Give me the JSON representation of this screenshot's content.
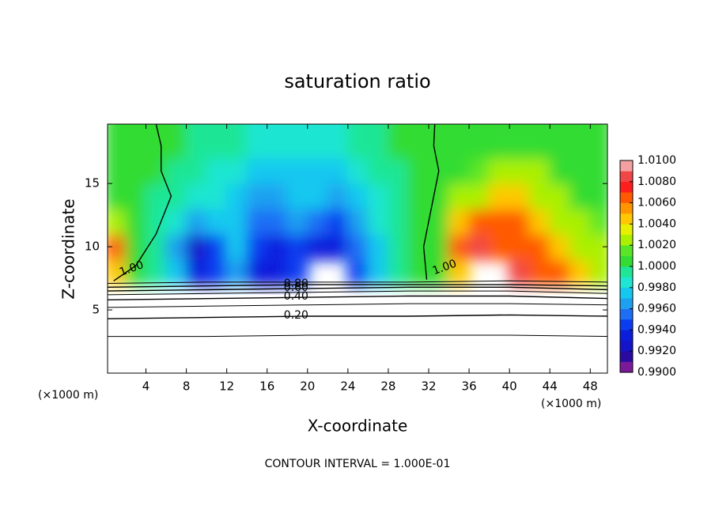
{
  "chart_data": {
    "type": "contour",
    "title": "saturation ratio",
    "xlabel": "X-coordinate",
    "ylabel": "Z-coordinate",
    "xunit": "(×1000 m)",
    "yunit": "(×1000 m)",
    "footer": "CONTOUR INTERVAL = 1.000E-01",
    "xlim": [
      0.2,
      49.7
    ],
    "ylim": [
      0,
      19.7
    ],
    "xticks": [
      4,
      8,
      12,
      16,
      20,
      24,
      28,
      32,
      36,
      40,
      44,
      48
    ],
    "yticks": [
      5,
      10,
      15
    ],
    "x": [
      1,
      3,
      5,
      7,
      9,
      11,
      13,
      15,
      17,
      19,
      21,
      23,
      25,
      27,
      29,
      31,
      33,
      35,
      37,
      39,
      41,
      43,
      45,
      47,
      49
    ],
    "z": [
      8,
      10,
      12,
      14,
      16,
      18
    ],
    "values": [
      [
        1.004,
        1.001,
        0.999,
        0.997,
        0.993,
        0.994,
        0.996,
        0.993,
        0.993,
        0.994,
        null,
        null,
        0.994,
        0.997,
        0.999,
        1.0,
        1.001,
        1.004,
        null,
        null,
        1.008,
        1.007,
        1.006,
        1.004,
        1.003
      ],
      [
        1.006,
        1.0005,
        0.999,
        0.996,
        0.992,
        0.994,
        0.997,
        0.994,
        0.993,
        0.994,
        0.993,
        0.993,
        0.995,
        0.997,
        0.999,
        1.0,
        1.001,
        1.006,
        1.008,
        1.007,
        1.007,
        1.006,
        1.005,
        1.003,
        1.002
      ],
      [
        1.002,
        1.001,
        0.999,
        0.998,
        0.996,
        0.997,
        0.997,
        0.995,
        0.995,
        0.996,
        0.995,
        0.994,
        0.996,
        0.998,
        0.999,
        1.0,
        1.0005,
        1.004,
        1.006,
        1.007,
        1.006,
        1.005,
        1.003,
        1.002,
        1.0015
      ],
      [
        1.001,
        1.0005,
        0.9995,
        0.999,
        0.998,
        0.998,
        0.997,
        0.996,
        0.996,
        0.997,
        0.997,
        0.996,
        0.997,
        0.998,
        0.9995,
        1.0,
        1.0005,
        1.002,
        1.003,
        1.004,
        1.004,
        1.003,
        1.002,
        1.001,
        1.001
      ],
      [
        1.001,
        1.0005,
        1.0,
        0.9995,
        0.999,
        0.998,
        0.998,
        0.997,
        0.997,
        0.997,
        0.997,
        0.997,
        0.998,
        0.999,
        0.9995,
        1.0,
        1.0005,
        1.001,
        1.0015,
        1.002,
        1.002,
        1.002,
        1.001,
        1.0008,
        1.0005
      ],
      [
        1.0005,
        1.0005,
        1.0,
        1.0,
        0.9995,
        0.999,
        0.999,
        0.998,
        0.998,
        0.998,
        0.998,
        0.998,
        0.999,
        0.9995,
        1.0,
        1.0003,
        1.0003,
        1.0005,
        1.0005,
        1.001,
        1.001,
        1.0008,
        1.0005,
        1.0003,
        1.0003
      ]
    ],
    "levels": [
      0.99,
      0.991,
      0.992,
      0.993,
      0.994,
      0.995,
      0.996,
      0.997,
      0.998,
      0.999,
      1.0,
      1.001,
      1.002,
      1.003,
      1.004,
      1.005,
      1.006,
      1.007,
      1.008,
      1.009,
      1.01
    ],
    "colors": [
      "#7a1a9a",
      "#2a0aa0",
      "#1414c8",
      "#0a1edc",
      "#0a3cf0",
      "#1e6ef5",
      "#1ea0f0",
      "#14c8f0",
      "#1ee6d2",
      "#1ee696",
      "#32dc32",
      "#5ae628",
      "#aaf000",
      "#e6f000",
      "#ffc800",
      "#ff9600",
      "#ff5a00",
      "#ff1e1e",
      "#f04646",
      "#f5a0a0"
    ],
    "colorbar_ticks": [
      {
        "value": 0.99,
        "label": "0.9900"
      },
      {
        "value": 0.992,
        "label": "0.9920"
      },
      {
        "value": 0.994,
        "label": "0.9940"
      },
      {
        "value": 0.996,
        "label": "0.9960"
      },
      {
        "value": 0.998,
        "label": "0.9980"
      },
      {
        "value": 1.0,
        "label": "1.0000"
      },
      {
        "value": 1.002,
        "label": "1.0020"
      },
      {
        "value": 1.004,
        "label": "1.0040"
      },
      {
        "value": 1.006,
        "label": "1.0060"
      },
      {
        "value": 1.008,
        "label": "1.0080"
      },
      {
        "value": 1.01,
        "label": "1.0100"
      }
    ],
    "contours": [
      {
        "x": [
          0,
          10,
          20,
          30,
          40,
          50
        ],
        "y": [
          2.9,
          2.9,
          3.0,
          3.0,
          3.0,
          2.9
        ]
      },
      {
        "x": [
          0,
          10,
          20,
          30,
          40,
          50
        ],
        "y": [
          4.3,
          4.4,
          4.5,
          4.5,
          4.6,
          4.5
        ],
        "label": "0.20"
      },
      {
        "x": [
          0,
          10,
          20,
          30,
          40,
          50
        ],
        "y": [
          5.2,
          5.3,
          5.4,
          5.5,
          5.5,
          5.4
        ]
      },
      {
        "x": [
          0,
          10,
          20,
          30,
          40,
          50
        ],
        "y": [
          5.8,
          5.9,
          6.0,
          6.1,
          6.1,
          5.9
        ],
        "label": "0.40"
      },
      {
        "x": [
          0,
          10,
          20,
          30,
          40,
          50
        ],
        "y": [
          6.2,
          6.3,
          6.4,
          6.5,
          6.5,
          6.3
        ]
      },
      {
        "x": [
          0,
          10,
          20,
          30,
          40,
          50
        ],
        "y": [
          6.5,
          6.6,
          6.7,
          6.8,
          6.8,
          6.6
        ],
        "label": "0.60"
      },
      {
        "x": [
          0,
          10,
          20,
          30,
          40,
          50
        ],
        "y": [
          6.8,
          6.9,
          7.0,
          7.0,
          7.0,
          6.9
        ],
        "label": "0.80"
      },
      {
        "x": [
          0,
          10,
          20,
          30,
          40,
          50
        ],
        "y": [
          7.1,
          7.2,
          7.2,
          7.2,
          7.3,
          7.2
        ]
      }
    ],
    "ratio_contours": [
      {
        "x": [
          0.8,
          3,
          5,
          6.5,
          5.5,
          5.5,
          5
        ],
        "y": [
          7.3,
          8.5,
          11,
          14,
          16,
          18,
          19.7
        ],
        "label": "1.00"
      },
      {
        "x": [
          31.8,
          31.5,
          32.5,
          33,
          32.5,
          32.6
        ],
        "y": [
          7.4,
          10,
          14,
          16,
          18,
          19.7
        ],
        "label": "1.00"
      }
    ]
  }
}
